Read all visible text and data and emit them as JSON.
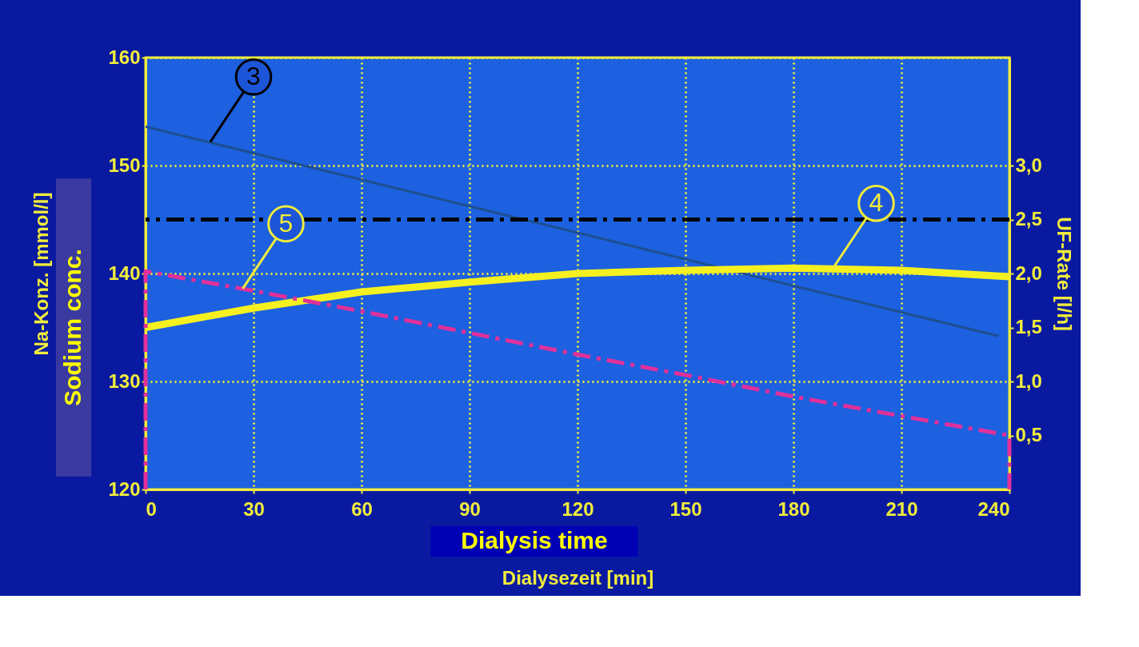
{
  "chart_data": {
    "type": "line",
    "xlabel": "Dialysezeit [min]",
    "ylabel": "Na-Konz. [mmol/l]",
    "y2label": "UF-Rate [l/h]",
    "xlim": [
      0,
      240
    ],
    "xticks": [
      0,
      30,
      60,
      90,
      120,
      150,
      180,
      210,
      240
    ],
    "ylim": [
      120,
      160
    ],
    "yticks": [
      120,
      130,
      140,
      150,
      160
    ],
    "y2lim": [
      0,
      4
    ],
    "y2ticks": [
      {
        "value": 0.5,
        "label": "0,5"
      },
      {
        "value": 1.0,
        "label": "1,0"
      },
      {
        "value": 1.5,
        "label": "1,5"
      },
      {
        "value": 2.0,
        "label": "2,0"
      },
      {
        "value": 2.5,
        "label": "2,5"
      },
      {
        "value": 3.0,
        "label": "3,0"
      }
    ],
    "grid": true,
    "marker": "none",
    "series": [
      {
        "color": "#1d4f8f",
        "x": [
          0,
          237
        ],
        "values": [
          153.6,
          134.2
        ],
        "line_style": "solid"
      },
      {
        "color": "#f5f020",
        "axis": "y2",
        "x": [
          0,
          30,
          60,
          90,
          120,
          150,
          180,
          210,
          240
        ],
        "values": [
          1.5,
          1.68,
          1.83,
          1.92,
          2.0,
          2.03,
          2.05,
          2.03,
          1.97
        ],
        "line_style": "solid"
      },
      {
        "color": "#e0309a",
        "axis": "y2",
        "x": [
          0,
          0,
          30,
          60,
          90,
          120,
          150,
          180,
          210,
          240,
          240
        ],
        "values": [
          0,
          2.02,
          1.84,
          1.65,
          1.45,
          1.25,
          1.06,
          0.86,
          0.68,
          0.5,
          0
        ],
        "line_style": "dashed"
      }
    ],
    "ref_lines": [
      {
        "axis": "y2",
        "value": 2.5,
        "color": "#000000",
        "line_style": "dashed"
      }
    ],
    "annotations": [
      "Sodium conc.",
      "Dialysis time",
      {
        "text": "3",
        "x": 18,
        "y": 152.2
      },
      {
        "text": "4",
        "x": 191,
        "y": 140.5
      },
      {
        "text": "5",
        "x": 27,
        "y": 138.6
      }
    ]
  }
}
